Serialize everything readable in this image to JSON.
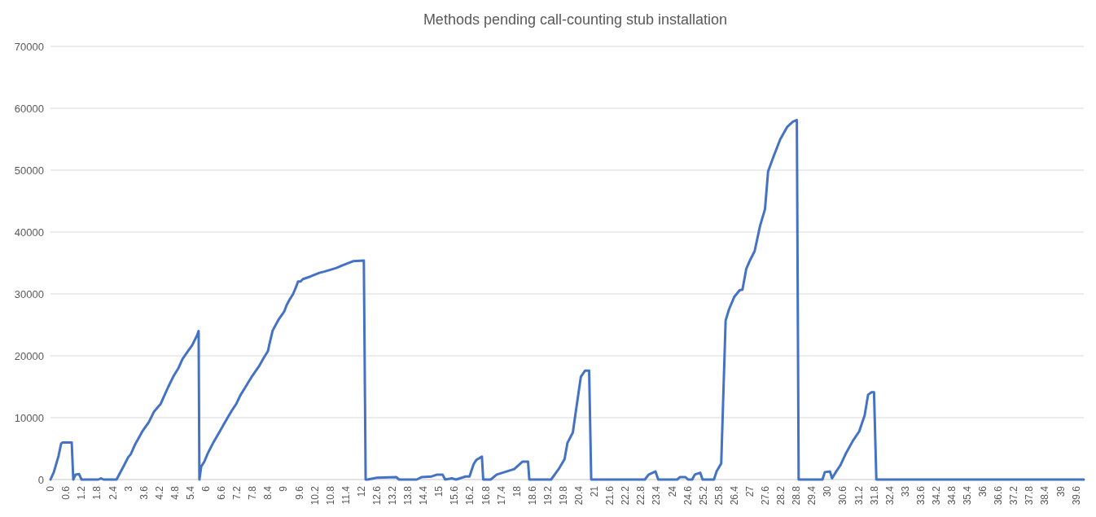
{
  "chart_data": {
    "type": "line",
    "title": "Methods pending call-counting stub installation",
    "x": [
      0,
      0.13,
      0.31,
      0.41,
      0.47,
      0.82,
      0.88,
      0.97,
      1.1,
      1.2,
      1.85,
      1.95,
      2.05,
      2.55,
      2.83,
      3.0,
      3.1,
      3.27,
      3.55,
      3.8,
      4.0,
      4.25,
      4.4,
      4.55,
      4.75,
      4.94,
      5.1,
      5.3,
      5.47,
      5.66,
      5.72,
      5.75,
      5.82,
      5.94,
      6.07,
      6.29,
      6.54,
      6.73,
      6.98,
      7.17,
      7.33,
      7.55,
      7.8,
      8.05,
      8.24,
      8.4,
      8.46,
      8.58,
      8.8,
      9.03,
      9.12,
      9.25,
      9.37,
      9.47,
      9.56,
      9.65,
      9.75,
      10.03,
      10.38,
      10.57,
      11.04,
      11.26,
      11.7,
      12.1,
      12.17,
      12.25,
      12.6,
      13.35,
      13.46,
      14.14,
      14.34,
      14.72,
      14.93,
      15.14,
      15.24,
      15.5,
      15.66,
      16.03,
      16.18,
      16.34,
      16.45,
      16.66,
      16.71,
      17.0,
      17.23,
      17.91,
      18.23,
      18.44,
      18.49,
      19.33,
      19.64,
      19.85,
      19.96,
      20.17,
      20.32,
      20.48,
      20.64,
      20.8,
      20.88,
      22.95,
      23.1,
      23.36,
      23.47,
      24.2,
      24.31,
      24.52,
      24.62,
      24.78,
      24.88,
      25.09,
      25.18,
      25.62,
      25.72,
      25.9,
      26.07,
      26.2,
      26.4,
      26.61,
      26.72,
      26.87,
      27.03,
      27.19,
      27.4,
      27.59,
      27.71,
      27.92,
      28.18,
      28.45,
      28.66,
      28.82,
      28.89,
      29.81,
      29.9,
      30.1,
      30.18,
      30.34,
      30.5,
      30.7,
      30.99,
      31.23,
      31.44,
      31.57,
      31.7,
      31.8,
      31.89,
      39.9
    ],
    "series": [
      {
        "color": "#4472c4",
        "values": [
          0,
          1200,
          3800,
          5800,
          6000,
          6000,
          0,
          800,
          900,
          0,
          0,
          200,
          0,
          0,
          2200,
          3600,
          4100,
          5700,
          7800,
          9300,
          11000,
          12200,
          13600,
          15000,
          16700,
          18000,
          19500,
          20700,
          21700,
          23300,
          24000,
          0,
          2100,
          2900,
          4200,
          6000,
          7800,
          9200,
          11000,
          12200,
          13600,
          15100,
          16800,
          18300,
          19700,
          20800,
          22000,
          24100,
          25800,
          27200,
          28200,
          29200,
          30000,
          31000,
          32000,
          32000,
          32400,
          32800,
          33400,
          33600,
          34200,
          34600,
          35300,
          35400,
          0,
          0,
          300,
          400,
          0,
          0,
          400,
          500,
          800,
          800,
          0,
          200,
          0,
          500,
          500,
          2500,
          3200,
          3700,
          0,
          0,
          800,
          1700,
          2900,
          2900,
          0,
          0,
          1800,
          3300,
          5900,
          7600,
          12000,
          16600,
          17600,
          17600,
          0,
          0,
          800,
          1300,
          0,
          0,
          400,
          400,
          0,
          0,
          800,
          1100,
          0,
          0,
          1300,
          2600,
          25700,
          27500,
          29500,
          30600,
          30700,
          34100,
          35600,
          36900,
          41000,
          43700,
          49800,
          52200,
          55000,
          57000,
          57800,
          58100,
          0,
          0,
          1200,
          1300,
          200,
          1300,
          2300,
          4100,
          6300,
          7800,
          10400,
          13700,
          14100,
          14100,
          0,
          0
        ]
      }
    ],
    "xlim": [
      0,
      39.9
    ],
    "xticks": [
      0,
      0.6,
      1.2,
      1.8,
      2.4,
      3,
      3.6,
      4.2,
      4.8,
      5.4,
      6,
      6.6,
      7.2,
      7.8,
      8.4,
      9,
      9.6,
      10.2,
      10.8,
      11.4,
      12,
      12.6,
      13.2,
      13.8,
      14.4,
      15,
      15.6,
      16.2,
      16.8,
      17.4,
      18,
      18.6,
      19.2,
      19.8,
      20.4,
      21,
      21.6,
      22.2,
      22.8,
      23.4,
      24,
      24.6,
      25.2,
      25.8,
      26.4,
      27,
      27.6,
      28.2,
      28.8,
      29.4,
      30,
      30.6,
      31.2,
      31.8,
      32.4,
      33,
      33.6,
      34.2,
      34.8,
      35.4,
      36,
      36.6,
      37.2,
      37.8,
      38.4,
      39,
      39.6
    ],
    "ylim": [
      0,
      70000
    ],
    "yticks": [
      0,
      10000,
      20000,
      30000,
      40000,
      50000,
      60000,
      70000
    ],
    "grid": "y",
    "marker": "none",
    "line_style": "solid"
  }
}
